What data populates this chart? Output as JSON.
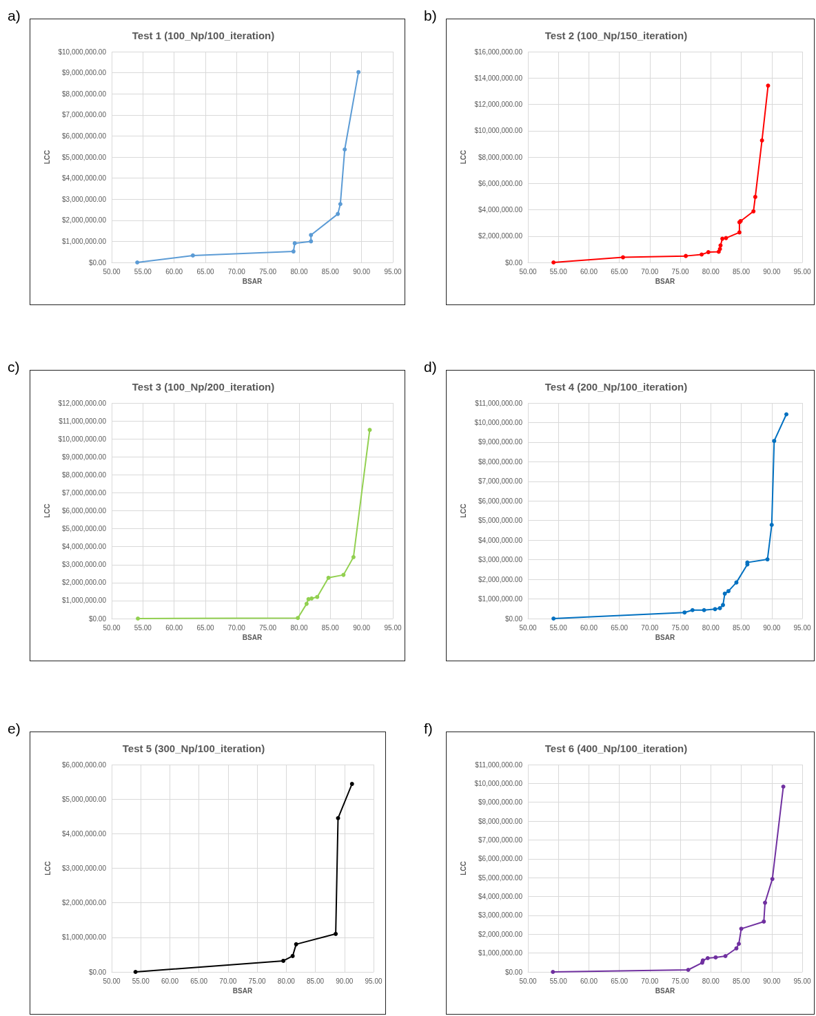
{
  "chart_data": [
    {
      "type": "line",
      "title": "Test 1 (100_Np/100_iteration)",
      "xlabel": "BSAR",
      "ylabel": "LCC",
      "annotations": [
        "a)"
      ],
      "color": "#5b9bd5",
      "grid": true,
      "marker": "circle",
      "x": [
        54.1,
        63.0,
        79.1,
        79.3,
        81.9,
        81.9,
        86.2,
        86.6,
        87.3,
        89.5
      ],
      "values": [
        0,
        330000,
        520000,
        910000,
        1000000,
        1300000,
        2300000,
        2770000,
        5360000,
        9030000
      ],
      "xlim": [
        50,
        95
      ],
      "xticks": [
        {
          "value": 50,
          "label": "50.00"
        },
        {
          "value": 55,
          "label": "55.00"
        },
        {
          "value": 60,
          "label": "60.00"
        },
        {
          "value": 65,
          "label": "65.00"
        },
        {
          "value": 70,
          "label": "70.00"
        },
        {
          "value": 75,
          "label": "75.00"
        },
        {
          "value": 80,
          "label": "80.00"
        },
        {
          "value": 85,
          "label": "85.00"
        },
        {
          "value": 90,
          "label": "90.00"
        },
        {
          "value": 95,
          "label": "95.00"
        }
      ],
      "ylim": [
        0,
        10000000
      ],
      "yticks": [
        {
          "value": 0,
          "label": "$0.00"
        },
        {
          "value": 1000000,
          "label": "$1,000,000.00"
        },
        {
          "value": 2000000,
          "label": "$2,000,000.00"
        },
        {
          "value": 3000000,
          "label": "$3,000,000.00"
        },
        {
          "value": 4000000,
          "label": "$4,000,000.00"
        },
        {
          "value": 5000000,
          "label": "$5,000,000.00"
        },
        {
          "value": 6000000,
          "label": "$6,000,000.00"
        },
        {
          "value": 7000000,
          "label": "$7,000,000.00"
        },
        {
          "value": 8000000,
          "label": "$8,000,000.00"
        },
        {
          "value": 9000000,
          "label": "$9,000,000.00"
        },
        {
          "value": 10000000,
          "label": "$10,000,000.00"
        }
      ]
    },
    {
      "type": "line",
      "title": "Test 2 (100_Np/150_iteration)",
      "xlabel": "BSAR",
      "ylabel": "LCC",
      "annotations": [
        "b)"
      ],
      "color": "#ff0000",
      "grid": true,
      "marker": "circle",
      "x": [
        54.2,
        65.6,
        75.9,
        78.5,
        79.6,
        81.3,
        81.5,
        81.6,
        81.9,
        82.5,
        84.7,
        84.7,
        84.9,
        87.0,
        87.3,
        88.4,
        89.4
      ],
      "values": [
        0,
        390000,
        490000,
        600000,
        780000,
        810000,
        1020000,
        1290000,
        1800000,
        1850000,
        2280000,
        3050000,
        3140000,
        3880000,
        4970000,
        9260000,
        13420000
      ],
      "xlim": [
        50,
        95
      ],
      "xticks": [
        {
          "value": 50,
          "label": "50.00"
        },
        {
          "value": 55,
          "label": "55.00"
        },
        {
          "value": 60,
          "label": "60.00"
        },
        {
          "value": 65,
          "label": "65.00"
        },
        {
          "value": 70,
          "label": "70.00"
        },
        {
          "value": 75,
          "label": "75.00"
        },
        {
          "value": 80,
          "label": "80.00"
        },
        {
          "value": 85,
          "label": "85.00"
        },
        {
          "value": 90,
          "label": "90.00"
        },
        {
          "value": 95,
          "label": "95.00"
        }
      ],
      "ylim": [
        0,
        16000000
      ],
      "yticks": [
        {
          "value": 0,
          "label": "$0.00"
        },
        {
          "value": 2000000,
          "label": "$2,000,000.00"
        },
        {
          "value": 4000000,
          "label": "$4,000,000.00"
        },
        {
          "value": 6000000,
          "label": "$6,000,000.00"
        },
        {
          "value": 8000000,
          "label": "$8,000,000.00"
        },
        {
          "value": 10000000,
          "label": "$10,000,000.00"
        },
        {
          "value": 12000000,
          "label": "$12,000,000.00"
        },
        {
          "value": 14000000,
          "label": "$14,000,000.00"
        },
        {
          "value": 16000000,
          "label": "$16,000,000.00"
        }
      ]
    },
    {
      "type": "line",
      "title": "Test 3 (100_Np/200_iteration)",
      "xlabel": "BSAR",
      "ylabel": "LCC",
      "annotations": [
        "c)"
      ],
      "color": "#92d050",
      "grid": true,
      "marker": "circle",
      "x": [
        54.2,
        79.8,
        81.2,
        81.5,
        82.0,
        82.9,
        84.7,
        87.1,
        88.7,
        91.3
      ],
      "values": [
        0,
        30000,
        820000,
        1080000,
        1120000,
        1200000,
        2270000,
        2430000,
        3420000,
        10500000
      ],
      "xlim": [
        50,
        95
      ],
      "xticks": [
        {
          "value": 50,
          "label": "50.00"
        },
        {
          "value": 55,
          "label": "55.00"
        },
        {
          "value": 60,
          "label": "60.00"
        },
        {
          "value": 65,
          "label": "65.00"
        },
        {
          "value": 70,
          "label": "70.00"
        },
        {
          "value": 75,
          "label": "75.00"
        },
        {
          "value": 80,
          "label": "80.00"
        },
        {
          "value": 85,
          "label": "85.00"
        },
        {
          "value": 90,
          "label": "90.00"
        },
        {
          "value": 95,
          "label": "95.00"
        }
      ],
      "ylim": [
        0,
        12000000
      ],
      "yticks": [
        {
          "value": 0,
          "label": "$0.00"
        },
        {
          "value": 1000000,
          "label": "$1,000,000.00"
        },
        {
          "value": 2000000,
          "label": "$2,000,000.00"
        },
        {
          "value": 3000000,
          "label": "$3,000,000.00"
        },
        {
          "value": 4000000,
          "label": "$4,000,000.00"
        },
        {
          "value": 5000000,
          "label": "$5,000,000.00"
        },
        {
          "value": 6000000,
          "label": "$6,000,000.00"
        },
        {
          "value": 7000000,
          "label": "$7,000,000.00"
        },
        {
          "value": 8000000,
          "label": "$8,000,000.00"
        },
        {
          "value": 9000000,
          "label": "$9,000,000.00"
        },
        {
          "value": 10000000,
          "label": "$10,000,000.00"
        },
        {
          "value": 11000000,
          "label": "$11,000,000.00"
        },
        {
          "value": 12000000,
          "label": "$12,000,000.00"
        }
      ]
    },
    {
      "type": "line",
      "title": "Test 4 (200_Np/100_iteration)",
      "xlabel": "BSAR",
      "ylabel": "LCC",
      "annotations": [
        "d)"
      ],
      "color": "#0070c0",
      "grid": true,
      "marker": "circle",
      "x": [
        54.2,
        75.7,
        77.0,
        78.9,
        80.7,
        81.5,
        82.0,
        82.3,
        82.9,
        84.2,
        86.0,
        86.0,
        89.3,
        90.0,
        90.4,
        92.4
      ],
      "values": [
        0,
        310000,
        430000,
        430000,
        480000,
        530000,
        690000,
        1270000,
        1400000,
        1840000,
        2760000,
        2860000,
        3020000,
        4780000,
        9060000,
        10420000
      ],
      "xlim": [
        50,
        95
      ],
      "xticks": [
        {
          "value": 50,
          "label": "50.00"
        },
        {
          "value": 55,
          "label": "55.00"
        },
        {
          "value": 60,
          "label": "60.00"
        },
        {
          "value": 65,
          "label": "65.00"
        },
        {
          "value": 70,
          "label": "70.00"
        },
        {
          "value": 75,
          "label": "75.00"
        },
        {
          "value": 80,
          "label": "80.00"
        },
        {
          "value": 85,
          "label": "85.00"
        },
        {
          "value": 90,
          "label": "90.00"
        },
        {
          "value": 95,
          "label": "95.00"
        }
      ],
      "ylim": [
        0,
        11000000
      ],
      "yticks": [
        {
          "value": 0,
          "label": "$0.00"
        },
        {
          "value": 1000000,
          "label": "$1,000,000.00"
        },
        {
          "value": 2000000,
          "label": "$2,000,000.00"
        },
        {
          "value": 3000000,
          "label": "$3,000,000.00"
        },
        {
          "value": 4000000,
          "label": "$4,000,000.00"
        },
        {
          "value": 5000000,
          "label": "$5,000,000.00"
        },
        {
          "value": 6000000,
          "label": "$6,000,000.00"
        },
        {
          "value": 7000000,
          "label": "$7,000,000.00"
        },
        {
          "value": 8000000,
          "label": "$8,000,000.00"
        },
        {
          "value": 9000000,
          "label": "$9,000,000.00"
        },
        {
          "value": 10000000,
          "label": "$10,000,000.00"
        },
        {
          "value": 11000000,
          "label": "$11,000,000.00"
        }
      ]
    },
    {
      "type": "line",
      "title": "Test 5 (300_Np/100_iteration)",
      "xlabel": "BSAR",
      "ylabel": "LCC",
      "annotations": [
        "e)"
      ],
      "color": "#000000",
      "grid": true,
      "marker": "circle",
      "x": [
        54.1,
        79.5,
        81.1,
        81.7,
        88.5,
        88.9,
        91.3
      ],
      "values": [
        0,
        320000,
        460000,
        800000,
        1100000,
        4450000,
        5440000
      ],
      "xlim": [
        50,
        95
      ],
      "xticks": [
        {
          "value": 50,
          "label": "50.00"
        },
        {
          "value": 55,
          "label": "55.00"
        },
        {
          "value": 60,
          "label": "60.00"
        },
        {
          "value": 65,
          "label": "65.00"
        },
        {
          "value": 70,
          "label": "70.00"
        },
        {
          "value": 75,
          "label": "75.00"
        },
        {
          "value": 80,
          "label": "80.00"
        },
        {
          "value": 85,
          "label": "85.00"
        },
        {
          "value": 90,
          "label": "90.00"
        },
        {
          "value": 95,
          "label": "95.00"
        }
      ],
      "ylim": [
        0,
        6000000
      ],
      "yticks": [
        {
          "value": 0,
          "label": "$0.00"
        },
        {
          "value": 1000000,
          "label": "$1,000,000.00"
        },
        {
          "value": 2000000,
          "label": "$2,000,000.00"
        },
        {
          "value": 3000000,
          "label": "$3,000,000.00"
        },
        {
          "value": 4000000,
          "label": "$4,000,000.00"
        },
        {
          "value": 5000000,
          "label": "$5,000,000.00"
        },
        {
          "value": 6000000,
          "label": "$6,000,000.00"
        }
      ]
    },
    {
      "type": "line",
      "title": "Test 6 (400_Np/100_iteration)",
      "xlabel": "BSAR",
      "ylabel": "LCC",
      "annotations": [
        "f)"
      ],
      "color": "#7030a0",
      "grid": true,
      "marker": "circle",
      "x": [
        54.1,
        76.3,
        78.6,
        78.7,
        79.5,
        80.8,
        82.4,
        84.2,
        84.6,
        85.0,
        88.7,
        88.9,
        90.1,
        91.9
      ],
      "values": [
        0,
        110000,
        490000,
        610000,
        730000,
        770000,
        840000,
        1250000,
        1490000,
        2290000,
        2670000,
        3670000,
        4930000,
        9830000
      ],
      "xlim": [
        50,
        95
      ],
      "xticks": [
        {
          "value": 50,
          "label": "50.00"
        },
        {
          "value": 55,
          "label": "55.00"
        },
        {
          "value": 60,
          "label": "60.00"
        },
        {
          "value": 65,
          "label": "65.00"
        },
        {
          "value": 70,
          "label": "70.00"
        },
        {
          "value": 75,
          "label": "75.00"
        },
        {
          "value": 80,
          "label": "80.00"
        },
        {
          "value": 85,
          "label": "85.00"
        },
        {
          "value": 90,
          "label": "90.00"
        },
        {
          "value": 95,
          "label": "95.00"
        }
      ],
      "ylim": [
        0,
        11000000
      ],
      "yticks": [
        {
          "value": 0,
          "label": "$0.00"
        },
        {
          "value": 1000000,
          "label": "$1,000,000.00"
        },
        {
          "value": 2000000,
          "label": "$2,000,000.00"
        },
        {
          "value": 3000000,
          "label": "$3,000,000.00"
        },
        {
          "value": 4000000,
          "label": "$4,000,000.00"
        },
        {
          "value": 5000000,
          "label": "$5,000,000.00"
        },
        {
          "value": 6000000,
          "label": "$6,000,000.00"
        },
        {
          "value": 7000000,
          "label": "$7,000,000.00"
        },
        {
          "value": 8000000,
          "label": "$8,000,000.00"
        },
        {
          "value": 9000000,
          "label": "$9,000,000.00"
        },
        {
          "value": 10000000,
          "label": "$10,000,000.00"
        },
        {
          "value": 11000000,
          "label": "$11,000,000.00"
        }
      ]
    }
  ]
}
